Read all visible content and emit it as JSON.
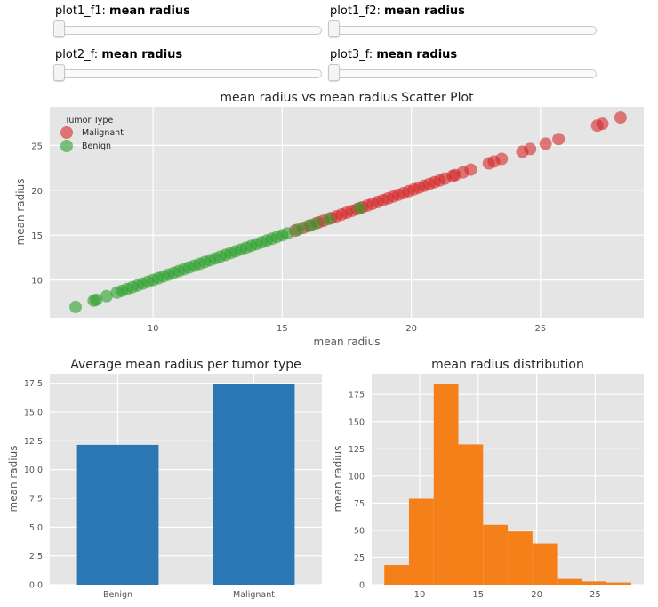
{
  "sliders": [
    {
      "prefix": "plot1_f1: ",
      "value": "mean radius"
    },
    {
      "prefix": "plot1_f2: ",
      "value": "mean radius"
    },
    {
      "prefix": "plot2_f: ",
      "value": "mean radius"
    },
    {
      "prefix": "plot3_f: ",
      "value": "mean radius"
    }
  ],
  "colors": {
    "malignant": "#d62728",
    "benign": "#2ca02c",
    "bar": "#2a77b4",
    "hist": "#f5801a",
    "panel": "#e5e5e5"
  },
  "chart_data": [
    {
      "type": "scatter",
      "title": "mean radius vs mean radius Scatter Plot",
      "xlabel": "mean radius",
      "ylabel": "mean radius",
      "xlim": [
        6.0,
        29.0
      ],
      "ylim": [
        5.8,
        29.3
      ],
      "xticks": [
        10,
        15,
        20,
        25
      ],
      "yticks": [
        10,
        15,
        20,
        25
      ],
      "legend": {
        "title": "Tumor Type",
        "position": "top-left"
      },
      "series": [
        {
          "name": "Malignant",
          "color": "#d62728",
          "x": [
            15.5,
            15.8,
            16.1,
            16.4,
            16.6,
            16.9,
            17.1,
            17.3,
            17.5,
            17.7,
            17.9,
            18.1,
            18.3,
            18.5,
            18.7,
            18.9,
            19.1,
            19.3,
            19.5,
            19.7,
            19.9,
            20.1,
            20.3,
            20.5,
            20.7,
            20.9,
            21.1,
            21.3,
            21.6,
            21.7,
            22.0,
            22.3,
            23.0,
            23.2,
            23.5,
            24.3,
            24.6,
            25.2,
            25.7,
            27.2,
            27.4,
            28.1
          ],
          "y": [
            15.5,
            15.8,
            16.1,
            16.4,
            16.6,
            16.9,
            17.1,
            17.3,
            17.5,
            17.7,
            17.9,
            18.1,
            18.3,
            18.5,
            18.7,
            18.9,
            19.1,
            19.3,
            19.5,
            19.7,
            19.9,
            20.1,
            20.3,
            20.5,
            20.7,
            20.9,
            21.1,
            21.3,
            21.6,
            21.7,
            22.0,
            22.3,
            23.0,
            23.2,
            23.5,
            24.3,
            24.6,
            25.2,
            25.7,
            27.2,
            27.4,
            28.1
          ]
        },
        {
          "name": "Benign",
          "color": "#2ca02c",
          "x": [
            7.0,
            7.7,
            7.8,
            8.2,
            8.6,
            8.8,
            9.0,
            9.2,
            9.4,
            9.6,
            9.8,
            10.0,
            10.2,
            10.4,
            10.6,
            10.8,
            11.0,
            11.2,
            11.4,
            11.6,
            11.8,
            12.0,
            12.2,
            12.4,
            12.6,
            12.8,
            13.0,
            13.2,
            13.4,
            13.6,
            13.8,
            14.0,
            14.2,
            14.4,
            14.6,
            14.8,
            15.0,
            15.2,
            15.6,
            16.0,
            16.3,
            16.8,
            18.0
          ],
          "y": [
            7.0,
            7.7,
            7.8,
            8.2,
            8.6,
            8.8,
            9.0,
            9.2,
            9.4,
            9.6,
            9.8,
            10.0,
            10.2,
            10.4,
            10.6,
            10.8,
            11.0,
            11.2,
            11.4,
            11.6,
            11.8,
            12.0,
            12.2,
            12.4,
            12.6,
            12.8,
            13.0,
            13.2,
            13.4,
            13.6,
            13.8,
            14.0,
            14.2,
            14.4,
            14.6,
            14.8,
            15.0,
            15.2,
            15.6,
            16.0,
            16.3,
            16.8,
            18.0
          ]
        }
      ]
    },
    {
      "type": "bar",
      "title": "Average mean radius per tumor type",
      "xlabel": "",
      "ylabel": "mean radius",
      "categories": [
        "Benign",
        "Malignant"
      ],
      "values": [
        12.15,
        17.46
      ],
      "ylim": [
        0,
        18.33
      ],
      "yticks": [
        0.0,
        2.5,
        5.0,
        7.5,
        10.0,
        12.5,
        15.0,
        17.5
      ],
      "ytick_labels": [
        "0.0",
        "2.5",
        "5.0",
        "7.5",
        "10.0",
        "12.5",
        "15.0",
        "17.5"
      ]
    },
    {
      "type": "bar",
      "subtype": "histogram",
      "title": "mean radius distribution",
      "xlabel": "",
      "ylabel": "mean radius",
      "bin_edges": [
        6.98,
        9.09,
        11.2,
        13.31,
        15.42,
        17.53,
        19.64,
        21.75,
        23.86,
        25.97,
        28.08
      ],
      "counts": [
        18,
        79,
        185,
        129,
        55,
        49,
        38,
        6,
        3,
        2
      ],
      "xlim": [
        5.9,
        29.15
      ],
      "ylim": [
        0,
        194
      ],
      "xticks": [
        10,
        15,
        20,
        25
      ],
      "yticks": [
        0,
        25,
        50,
        75,
        100,
        125,
        150,
        175
      ]
    }
  ]
}
